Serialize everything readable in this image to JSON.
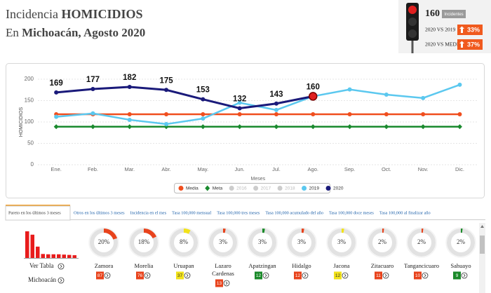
{
  "header": {
    "title_prefix": "Incidencia",
    "title_emphasis": "HOMICIDIOS",
    "subtitle_prefix": "En",
    "subtitle_emphasis": "Michoacán, Agosto 2020"
  },
  "indicator": {
    "value": "160",
    "unit": "Incidentes",
    "rows": [
      {
        "label": "2020 VS 2019",
        "change": "33%"
      },
      {
        "label": "2020 VS MEDIA",
        "change": "37%"
      }
    ]
  },
  "chart_data": {
    "type": "line",
    "x_label": "Meses",
    "y_label": "HOMICIDIOS",
    "categories": [
      "Ene.",
      "Feb.",
      "Mar.",
      "Abr.",
      "May.",
      "Jun.",
      "Jul.",
      "Ago.",
      "Sep.",
      "Oct.",
      "Nov.",
      "Dic."
    ],
    "ylim": [
      0,
      200
    ],
    "yticks": [
      0,
      50,
      100,
      150,
      200
    ],
    "grid": true,
    "series": [
      {
        "name": "Media",
        "color": "#f04e1e",
        "visible": true,
        "values": [
          118,
          118,
          118,
          118,
          118,
          118,
          118,
          118,
          118,
          118,
          118,
          118
        ]
      },
      {
        "name": "Meta",
        "color": "#1a8a2e",
        "visible": true,
        "values": [
          89,
          89,
          89,
          89,
          89,
          89,
          89,
          89,
          89,
          89,
          89,
          89
        ]
      },
      {
        "name": "2016",
        "color": "#cccccc",
        "visible": false,
        "values": [
          null,
          null,
          null,
          null,
          null,
          null,
          null,
          null,
          null,
          null,
          null,
          null
        ]
      },
      {
        "name": "2017",
        "color": "#cccccc",
        "visible": false,
        "values": [
          null,
          null,
          null,
          null,
          null,
          null,
          null,
          null,
          null,
          null,
          null,
          null
        ]
      },
      {
        "name": "2018",
        "color": "#cccccc",
        "visible": false,
        "values": [
          null,
          null,
          null,
          null,
          null,
          null,
          null,
          null,
          null,
          null,
          null,
          null
        ]
      },
      {
        "name": "2019",
        "color": "#5bc8ef",
        "visible": true,
        "values": [
          112,
          120,
          105,
          95,
          108,
          145,
          128,
          160,
          176,
          164,
          156,
          187
        ]
      },
      {
        "name": "2020",
        "color": "#1a1a7a",
        "visible": true,
        "data_labels": true,
        "values": [
          169,
          177,
          182,
          175,
          153,
          132,
          143,
          160,
          null,
          null,
          null,
          null
        ]
      }
    ]
  },
  "tabs": [
    "Pareto en los últimos 3 meses",
    "Otros en los últimos 3 meses",
    "Incidencia en el mes",
    "Tasa 100,000 mensual",
    "Tasa 100,000 tres meses",
    "Tasa 100,000 acumulado del año",
    "Tasa 100,000 doce meses",
    "Tasa 100,000 al finalizar año"
  ],
  "pareto": {
    "table_link": "Ver Tabla",
    "region_link": "Michoacán"
  },
  "municipalities": [
    {
      "name": "Zamora",
      "percent": 20,
      "percent_label": "20%",
      "count": 87,
      "level": "red"
    },
    {
      "name": "Morelia",
      "percent": 18,
      "percent_label": "18%",
      "count": 76,
      "level": "red"
    },
    {
      "name": "Uruapan",
      "percent": 8,
      "percent_label": "8%",
      "count": 37,
      "level": "yellow"
    },
    {
      "name": "Lazaro Cardenas",
      "percent": 3,
      "percent_label": "3%",
      "count": 13,
      "level": "red"
    },
    {
      "name": "Apatzingan",
      "percent": 3,
      "percent_label": "3%",
      "count": 12,
      "level": "green"
    },
    {
      "name": "Hidalgo",
      "percent": 3,
      "percent_label": "3%",
      "count": 12,
      "level": "red"
    },
    {
      "name": "Jacona",
      "percent": 3,
      "percent_label": "3%",
      "count": 12,
      "level": "yellow"
    },
    {
      "name": "Zitacuaro",
      "percent": 2,
      "percent_label": "2%",
      "count": 11,
      "level": "red"
    },
    {
      "name": "Tangancicuaro",
      "percent": 2,
      "percent_label": "2%",
      "count": 10,
      "level": "red"
    },
    {
      "name": "Sahuayo",
      "percent": 2,
      "percent_label": "2%",
      "count": 9,
      "level": "green"
    }
  ]
}
